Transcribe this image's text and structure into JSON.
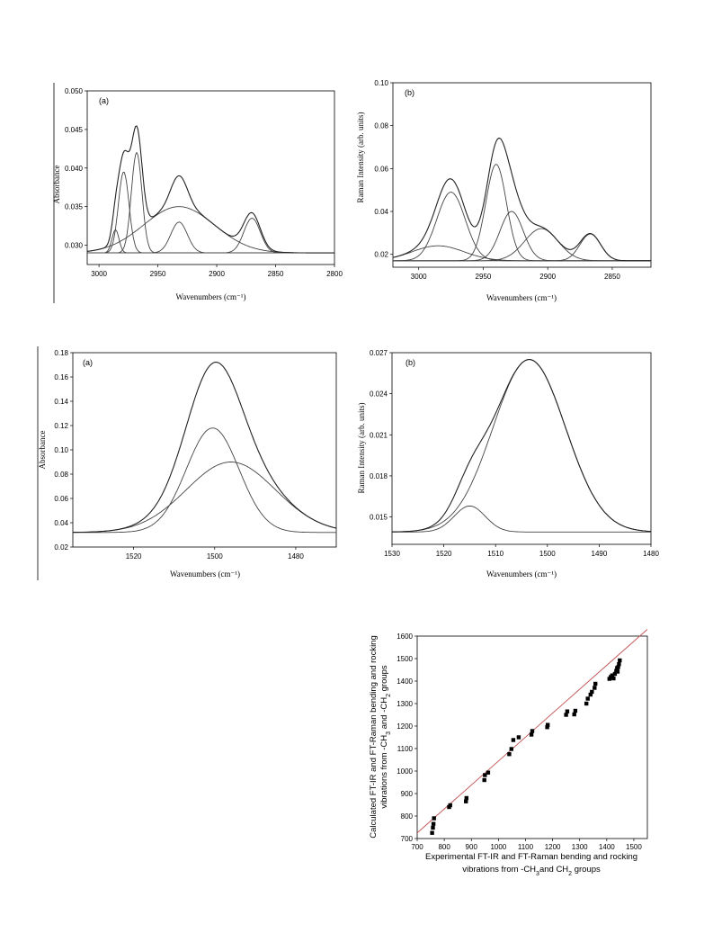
{
  "chart_data": [
    {
      "id": "p1",
      "type": "line",
      "panel_label": "(a)",
      "xlabel": "Wavenumbers (cm⁻¹)",
      "ylabel": "Absorbance",
      "xlim": [
        3010,
        2800
      ],
      "ylim": [
        0.0275,
        0.05
      ],
      "xticks": [
        3000,
        2950,
        2900,
        2850,
        2800
      ],
      "yticks": [
        0.03,
        0.035,
        0.04,
        0.045,
        0.05
      ],
      "ytick_labels": [
        "0.030",
        "0.035",
        "0.040",
        "0.045",
        "0.050"
      ],
      "baseline": 0.029,
      "components": [
        {
          "center": 2986,
          "amplitude": 0.003,
          "width": 3
        },
        {
          "center": 2979,
          "amplitude": 0.0105,
          "width": 4.5
        },
        {
          "center": 2968,
          "amplitude": 0.013,
          "width": 4.5
        },
        {
          "center": 2932,
          "amplitude": 0.004,
          "width": 7
        },
        {
          "center": 2932,
          "amplitude": 0.006,
          "width": 30
        },
        {
          "center": 2870,
          "amplitude": 0.0045,
          "width": 7
        }
      ]
    },
    {
      "id": "p2",
      "type": "line",
      "panel_label": "(b)",
      "xlabel": "Wavenumbers (cm⁻¹)",
      "ylabel": "Raman Intensity (arb. units)",
      "xlim": [
        3020,
        2820
      ],
      "ylim": [
        0.014,
        0.1
      ],
      "xticks": [
        3000,
        2950,
        2900,
        2850
      ],
      "yticks": [
        0.02,
        0.04,
        0.06,
        0.08,
        0.1
      ],
      "ytick_labels": [
        "0.02",
        "0.04",
        "0.06",
        "0.08",
        "0.10"
      ],
      "baseline": 0.017,
      "components": [
        {
          "center": 2985,
          "amplitude": 0.007,
          "width": 20
        },
        {
          "center": 2975,
          "amplitude": 0.032,
          "width": 11
        },
        {
          "center": 2940,
          "amplitude": 0.045,
          "width": 8
        },
        {
          "center": 2928,
          "amplitude": 0.023,
          "width": 9
        },
        {
          "center": 2905,
          "amplitude": 0.015,
          "width": 13
        },
        {
          "center": 2867,
          "amplitude": 0.0125,
          "width": 8
        }
      ]
    },
    {
      "id": "p3",
      "type": "line",
      "panel_label": "(a)",
      "xlabel": "Wavenumbers (cm⁻¹)",
      "ylabel": "Absorbance",
      "xlim": [
        1535,
        1470
      ],
      "ylim": [
        0.02,
        0.18
      ],
      "xticks": [
        1520,
        1500,
        1480
      ],
      "yticks": [
        0.02,
        0.04,
        0.06,
        0.08,
        0.1,
        0.12,
        0.14,
        0.16,
        0.18
      ],
      "ytick_labels": [
        "0.02",
        "0.04",
        "0.06",
        "0.08",
        "0.10",
        "0.12",
        "0.14",
        "0.16",
        "0.18"
      ],
      "baseline": 0.032,
      "components": [
        {
          "center": 1500.5,
          "amplitude": 0.086,
          "width": 6.5
        },
        {
          "center": 1496,
          "amplitude": 0.058,
          "width": 11
        }
      ]
    },
    {
      "id": "p4",
      "type": "line",
      "panel_label": "(b)",
      "xlabel": "Wavenumbers (cm⁻¹)",
      "ylabel": "Raman Intensity (arb. units)",
      "xlim": [
        1530,
        1480
      ],
      "ylim": [
        0.013,
        0.027
      ],
      "xticks": [
        1530,
        1520,
        1510,
        1500,
        1490,
        1480
      ],
      "yticks": [
        0.015,
        0.018,
        0.021,
        0.024,
        0.027
      ],
      "ytick_labels": [
        "0.015",
        "0.018",
        "0.021",
        "0.024",
        "0.027"
      ],
      "baseline": 0.0139,
      "components": [
        {
          "center": 1503.5,
          "amplitude": 0.0126,
          "width": 7
        },
        {
          "center": 1515,
          "amplitude": 0.0019,
          "width": 3
        }
      ]
    },
    {
      "id": "p5",
      "type": "scatter",
      "xlabel_line1": "Experimental FT-IR and FT-Raman bending and rocking",
      "xlabel_line2": "vibrations from -CH",
      "xlabel_line2_tail": "and CH",
      "xlabel_line2_end": " groups",
      "ylabel_line1": "Calculated FT-IR and FT-Raman bending and rocking",
      "ylabel_line2": "vibrations from -CH",
      "ylabel_line2_mid": " and -CH",
      "ylabel_line2_end": " groups",
      "subscript_3": "3",
      "subscript_2": "2",
      "xlim": [
        700,
        1550
      ],
      "ylim": [
        700,
        1600
      ],
      "xticks": [
        700,
        800,
        900,
        1000,
        1100,
        1200,
        1300,
        1400,
        1500
      ],
      "yticks": [
        700,
        800,
        900,
        1000,
        1100,
        1200,
        1300,
        1400,
        1500,
        1600
      ],
      "fit_line": {
        "x": [
          700,
          1550
        ],
        "y": [
          725,
          1630
        ]
      },
      "fit_color": "#c45a5a",
      "points": {
        "x": [
          755,
          758,
          760,
          762,
          818,
          822,
          880,
          882,
          948,
          950,
          962,
          1040,
          1048,
          1055,
          1075,
          1122,
          1125,
          1180,
          1182,
          1250,
          1254,
          1280,
          1284,
          1325,
          1330,
          1340,
          1345,
          1355,
          1358,
          1410,
          1415,
          1420,
          1425,
          1430,
          1435,
          1438,
          1440,
          1442,
          1445,
          1448
        ],
        "y": [
          725,
          748,
          765,
          790,
          840,
          848,
          865,
          880,
          960,
          982,
          993,
          1075,
          1098,
          1138,
          1150,
          1162,
          1178,
          1195,
          1205,
          1250,
          1265,
          1252,
          1268,
          1300,
          1322,
          1340,
          1352,
          1370,
          1388,
          1410,
          1418,
          1425,
          1412,
          1432,
          1445,
          1458,
          1442,
          1462,
          1475,
          1492
        ]
      }
    }
  ]
}
